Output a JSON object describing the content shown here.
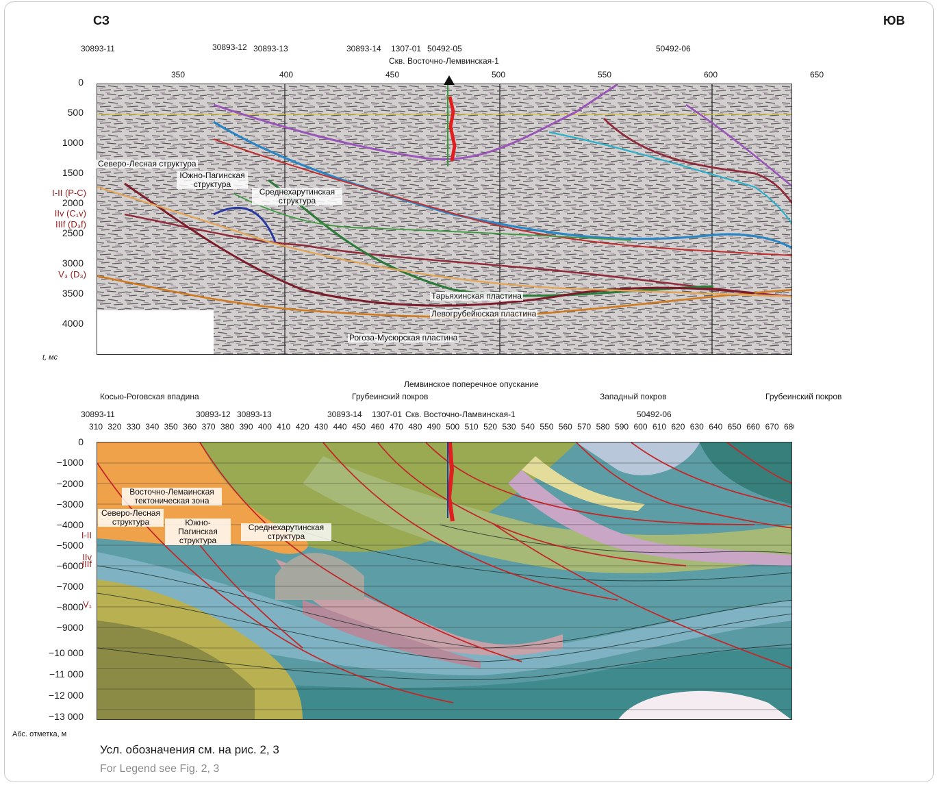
{
  "header": {
    "left_dir": "СЗ",
    "right_dir": "ЮВ"
  },
  "top": {
    "wells": [
      "30893-11",
      "30893-12",
      "30893-13",
      "30893-14",
      "1307-01",
      "50492-05",
      "50492-06"
    ],
    "well_name": "Скв. Восточно-Лемвинская-1",
    "x_ticks": [
      "350",
      "400",
      "450",
      "500",
      "550",
      "600",
      "650"
    ],
    "y_ticks": [
      "0",
      "500",
      "1000",
      "1500",
      "2000",
      "2500",
      "3000",
      "3500",
      "4000"
    ],
    "y_unit": "t, мс",
    "horizons": [
      "I-II (P-C)",
      "IIv (C₁v)",
      "IIIf (D₃f)",
      "V₃ (D₃)"
    ],
    "structures": [
      "Северо-Лесная структура",
      "Южно-Пагинская структура",
      "Среднехарутинская структура"
    ],
    "plates": [
      "Тарьяхинская пластина",
      "Левогрубейюская пластина",
      "Рогоза-Мусюрская пластина"
    ]
  },
  "bottom": {
    "zone_title": "Лемвинское поперечное опускание",
    "zones": [
      "Косью-Роговская впадина",
      "Грубеинский покров",
      "Западный покров",
      "Грубеинский покров"
    ],
    "wells": [
      "30893-11",
      "30893-12",
      "30893-13",
      "30893-14",
      "1307-01",
      "50492-06"
    ],
    "well_name": "Скв. Восточно-Ламвинская-1",
    "x_ticks": [
      "310",
      "320",
      "330",
      "340",
      "350",
      "360",
      "370",
      "380",
      "390",
      "400",
      "410",
      "420",
      "430",
      "440",
      "450",
      "460",
      "470",
      "480",
      "490",
      "500",
      "510",
      "520",
      "530",
      "540",
      "550",
      "560",
      "570",
      "580",
      "590",
      "600",
      "610",
      "620",
      "630",
      "640",
      "650",
      "660",
      "670",
      "680"
    ],
    "y_ticks": [
      "0",
      "−1000",
      "−2000",
      "−3000",
      "−4000",
      "−5000",
      "−6000",
      "−7000",
      "−8000",
      "−9000",
      "−10 000",
      "−11 000",
      "−12 000",
      "−13 000"
    ],
    "y_unit": "Абс. отметка, м",
    "horizons": [
      "I-II",
      "IIv",
      "IIIf",
      "V₁"
    ],
    "zone_label": "Восточно-Лемаинская тектоническая зона",
    "structures": [
      "Северо-Лесная структура",
      "Южно-Пагинская структура",
      "Среднехарутинская структура"
    ]
  },
  "caption": {
    "ru": "Усл. обозначения см. на рис. 2, 3",
    "en": "For Legend see Fig. 2, 3"
  },
  "colors": {
    "orange": "#f0a24a",
    "olive": "#8a9a4a",
    "teal": "#3f8f95",
    "fault": "#c0282a"
  }
}
